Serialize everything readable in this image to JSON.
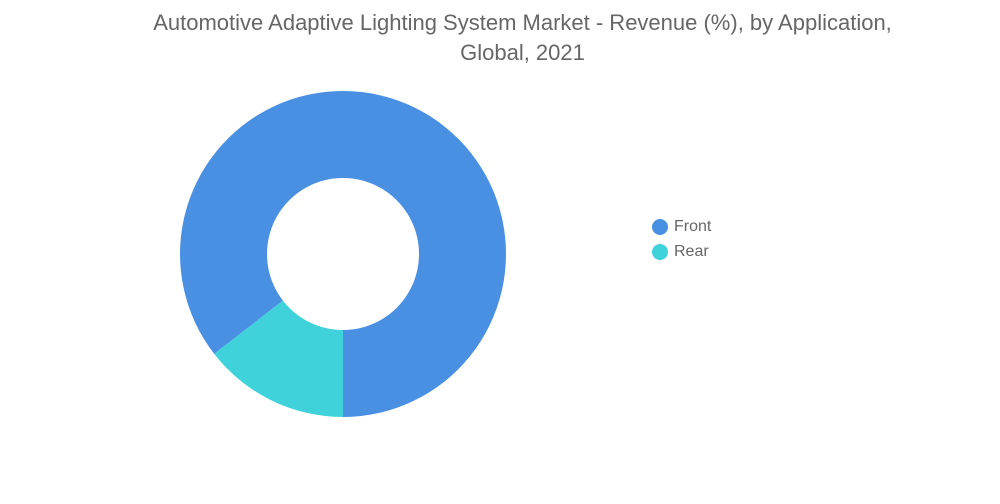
{
  "chart_data": {
    "type": "pie",
    "title": "Automotive Adaptive Lighting System Market - Revenue (%), by Application, Global, 2021",
    "title_lines": [
      "Automotive Adaptive Lighting System Market - Revenue (%), by Application,",
      "Global, 2021"
    ],
    "donut": true,
    "categories": [
      "Front",
      "Rear"
    ],
    "values": [
      85.5,
      14.5
    ],
    "colors": [
      "#4A90E2",
      "#40D2DA"
    ],
    "legend_position": "right"
  }
}
